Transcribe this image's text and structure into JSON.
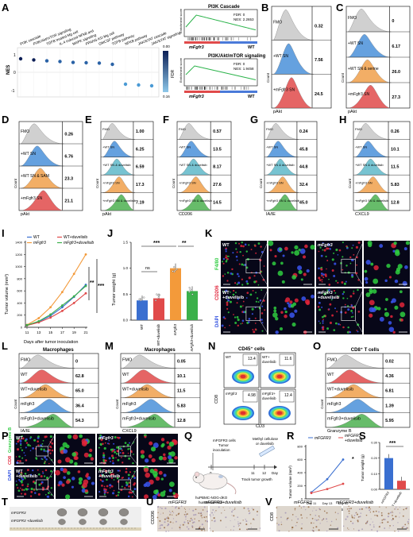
{
  "panels": {
    "A": {
      "letter": "A",
      "terms": [
        "PI3K cascade",
        "PI3K/Akt/mTOR signaling",
        "TGFB treated Mg cell",
        "IL-4 induced NFkB and",
        "MAPK signaling",
        "PPARG-KD Mg cell",
        "GMCSF pathway",
        "TGFB pathway",
        "NFKB pathway",
        "JAK/STAT cascade",
        "JAK/STAT signaling"
      ],
      "nes": [
        0.85,
        0.78,
        0.72,
        0.68,
        0.62,
        0.6,
        0.58,
        0.5,
        -0.75,
        -0.8,
        -0.85
      ],
      "ylabel": "NES",
      "yticks": [
        "1",
        "0",
        "-1"
      ],
      "fdr_label": "FDR",
      "fdr_ticks": [
        "0.00",
        "0.16"
      ]
    },
    "gsea": [
      {
        "title": "PI3K Cascade",
        "fdr": "FDR: 0",
        "nes": "NES: 2.2653",
        "left": "mFgfr3",
        "right": "WT",
        "ylab": "Enrichment score"
      },
      {
        "title": "PI3K/Akt/mTOR signaling",
        "fdr": "FDR: 0",
        "nes": "NES: 1.9458",
        "left": "mFgfr3",
        "right": "WT",
        "ylab": "Enrichment score"
      }
    ],
    "flowB": {
      "letter": "B",
      "ylabel": "Count",
      "xlabel": "pAkt",
      "rows": [
        {
          "label": "FMO",
          "value": "0.32"
        },
        {
          "label": "+WT SN",
          "value": "7.56"
        },
        {
          "label": "+mFgfr3 SN",
          "value": "24.5"
        }
      ]
    },
    "flowC": {
      "letter": "C",
      "ylabel": "Count",
      "xlabel": "pAkt",
      "rows": [
        {
          "label": "FMO",
          "value": "0"
        },
        {
          "label": "+WT SN",
          "value": "6.17"
        },
        {
          "label": "+WT SN & serine",
          "value": "26.0"
        },
        {
          "label": "+mFgfr3 SN",
          "value": "27.3"
        }
      ]
    },
    "flowD": {
      "letter": "D",
      "ylabel": "Count",
      "xlabel": "pAkt",
      "rows": [
        {
          "label": "FMO",
          "value": "0.26"
        },
        {
          "label": "+WT SN",
          "value": "6.76"
        },
        {
          "label": "+WT SN & SAM",
          "value": "23.3"
        },
        {
          "label": "+mFgfr3 SN",
          "value": "21.1"
        }
      ]
    },
    "flowE": {
      "letter": "E",
      "ylabel": "Count",
      "xlabel": "pAkt",
      "rows": [
        {
          "label": "FMO",
          "value": "1.00"
        },
        {
          "label": "+WT SN",
          "value": "6.25"
        },
        {
          "label": "+WT SN & duvelisib",
          "value": "6.59"
        },
        {
          "label": "+mFgfr3 SN",
          "value": "17.3"
        },
        {
          "label": "+mFgfr3 SN & duvelisib",
          "value": "7.19"
        }
      ]
    },
    "flowF": {
      "letter": "F",
      "ylabel": "Count",
      "xlabel": "CD206",
      "rows": [
        {
          "label": "FMO",
          "value": "0.57"
        },
        {
          "label": "+WT SN",
          "value": "13.5"
        },
        {
          "label": "+WT SN & duvelisib",
          "value": "8.17"
        },
        {
          "label": "+mFgfr3 SN",
          "value": "27.6"
        },
        {
          "label": "+mFgfr3 SN & duvelisib",
          "value": "14.5"
        }
      ]
    },
    "flowG": {
      "letter": "G",
      "ylabel": "Count",
      "xlabel": "IA/IE",
      "rows": [
        {
          "label": "FMO",
          "value": "0.24"
        },
        {
          "label": "+WT SN",
          "value": "45.8"
        },
        {
          "label": "+WT SN & duvelisib",
          "value": "44.8"
        },
        {
          "label": "+mFgfr3 SN",
          "value": "32.4"
        },
        {
          "label": "+mFgfr3 SN & duvelisib",
          "value": "45.0"
        }
      ]
    },
    "flowH": {
      "letter": "H",
      "ylabel": "Count",
      "xlabel": "CXCL9",
      "rows": [
        {
          "label": "FMO",
          "value": "0.26"
        },
        {
          "label": "+WT SN",
          "value": "10.1"
        },
        {
          "label": "+WT SN & duvelisib",
          "value": "11.5"
        },
        {
          "label": "+mFgfr3 SN",
          "value": "5.83"
        },
        {
          "label": "+mFgfr3 SN & duvelisib",
          "value": "12.8"
        }
      ]
    },
    "I": {
      "letter": "I",
      "ylabel": "Tumor volume (mm³)",
      "xlabel": "Days after tumor inoculation",
      "legend": [
        "WT",
        "mFgfr3",
        "WT+duvelisib",
        "mFgfr3+duvelisib"
      ],
      "sig1": "**",
      "sig2": "***",
      "yticks": [
        "0",
        "200",
        "400",
        "600",
        "800",
        "1000",
        "1200",
        "1400"
      ],
      "xticks": [
        "11",
        "13",
        "15",
        "17",
        "19",
        "21"
      ]
    },
    "J": {
      "letter": "J",
      "ylabel": "Tumor weight (g)",
      "sig_ns": "ns",
      "sig_a": "***",
      "sig_b": "**",
      "yticks": [
        "0.0",
        "0.5",
        "1.0",
        "1.5"
      ],
      "cats": [
        "WT",
        "WT+duvelisib",
        "mFgfr3",
        "mFgfr3+duvelisib"
      ]
    },
    "K": {
      "letter": "K",
      "channels": [
        "F4/80",
        "CD206",
        "DAPI"
      ],
      "labels": [
        "WT",
        "mFgfr3",
        "WT +duvelisib",
        "mFgfr3 +duvelisib"
      ]
    },
    "flowL": {
      "letter": "L",
      "title": "Macrophages",
      "xlabel": "IA/IE",
      "ylabel": "Count",
      "rows": [
        {
          "label": "FMO",
          "value": "0"
        },
        {
          "label": "WT",
          "value": "62.8"
        },
        {
          "label": "WT+duvelisib",
          "value": "65.0"
        },
        {
          "label": "mFgfr3",
          "value": "36.4"
        },
        {
          "label": "mFgfr3+duvelisib",
          "value": "54.3"
        }
      ]
    },
    "flowM": {
      "letter": "M",
      "title": "Macrophages",
      "xlabel": "CXCL9",
      "ylabel": "Count",
      "rows": [
        {
          "label": "FMO",
          "value": "0.05"
        },
        {
          "label": "WT",
          "value": "10.1"
        },
        {
          "label": "WT+duvelisib",
          "value": "11.5"
        },
        {
          "label": "mFgfr3",
          "value": "5.83"
        },
        {
          "label": "mFgfr3+duvelisib",
          "value": "12.8"
        }
      ]
    },
    "N": {
      "letter": "N",
      "title": "CD45⁺ cells",
      "xlabel": "CD3",
      "ylabel": "CD8",
      "quads": [
        {
          "label": "WT",
          "value": "13.4"
        },
        {
          "label": "WT+ duvelisib",
          "value": "11.6"
        },
        {
          "label": "mFgfr3",
          "value": "4.98"
        },
        {
          "label": "mFgfr3+ duvelisib",
          "value": "12.4"
        }
      ]
    },
    "flowO": {
      "letter": "O",
      "title": "CD8⁺ T cells",
      "xlabel": "Granzyme B",
      "ylabel": "Count",
      "rows": [
        {
          "label": "FMO",
          "value": "0.02"
        },
        {
          "label": "WT",
          "value": "4.36"
        },
        {
          "label": "WT+duvelisib",
          "value": "6.81"
        },
        {
          "label": "mFgfr3",
          "value": "1.39"
        },
        {
          "label": "mFgfr3+duvelisib",
          "value": "5.95"
        }
      ]
    },
    "P": {
      "letter": "P",
      "channels": [
        "CD8",
        "Granzyme B",
        "DAPI"
      ],
      "labels": [
        "WT",
        "mFgfr3",
        "WT +duvelisib",
        "mFgfr3 +duvelisib"
      ]
    },
    "Q": {
      "letter": "Q",
      "text1": "mFGFR3 cells",
      "text2": "Tumor",
      "text3": "inoculation",
      "text4": "Methyl cellulose",
      "text5": "or duvelisib",
      "d0": "0",
      "d11": "11",
      "d12": "12",
      "d": "Day",
      "track": "Track tumor growth",
      "mouse": "huPBMC-NOG-dKO",
      "mouse2": "humanoid mice"
    },
    "R": {
      "letter": "R",
      "legend": [
        "mFGFR3",
        "mFGFR3 +duvelisib"
      ],
      "ylabel": "Tumor volume (mm³)",
      "xlabel": "Days after tumor inoculation",
      "xticks": [
        "Day 11",
        "Day 13",
        "Day 15"
      ],
      "yticks": [
        "0",
        "200",
        "400",
        "600",
        "800"
      ],
      "sig": "*"
    },
    "S": {
      "letter": "S",
      "ylabel": "Tumor weight (g)",
      "sig": "***",
      "yticks": [
        "0.00",
        "0.10",
        "0.20",
        "0.30"
      ],
      "cats": [
        "mFGFR3",
        "mFGFR3 +duvelisib"
      ]
    },
    "T": {
      "letter": "T",
      "row1": "mFGFR3",
      "row2": "mFGFR3 +duvelisib"
    },
    "U": {
      "letter": "U",
      "col1": "mFGFR3",
      "col2": "mFGFR3+duvelisib",
      "ylabel": "CD206"
    },
    "V": {
      "letter": "V",
      "col1": "mFGFR3",
      "col2": "mFGFR3+duvelisib",
      "ylabel": "CD8"
    }
  },
  "colors": {
    "fmo": "#c8c8c8",
    "wt": "#4a90d9",
    "t3": "#5fb8c9",
    "t4": "#f0a04b",
    "t5": "#e04a4a",
    "t6": "#4cb050"
  }
}
